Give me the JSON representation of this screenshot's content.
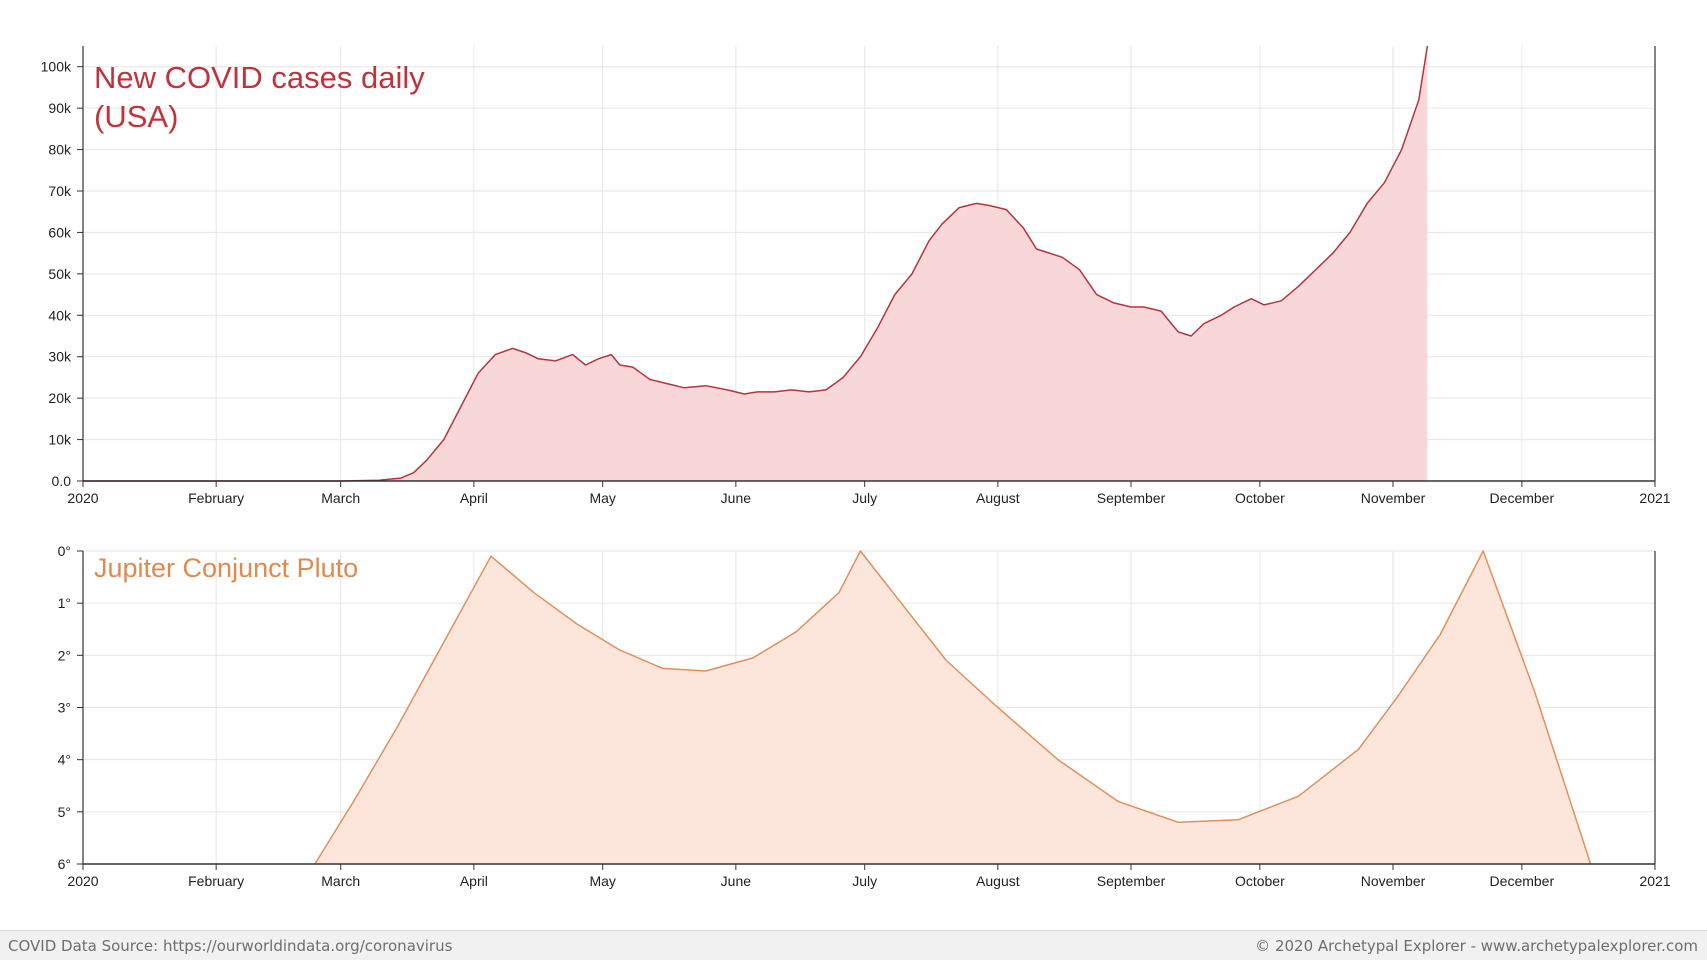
{
  "chart_data": [
    {
      "type": "area",
      "title": "New COVID cases daily\n(USA)",
      "title_color": "#c1333c",
      "line_color": "#b8343d",
      "fill_color": "#f8d7d9",
      "grid": true,
      "xlim": [
        "2020-01-01",
        "2021-01-01"
      ],
      "x_tick_labels": [
        "2020",
        "February",
        "March",
        "April",
        "May",
        "June",
        "July",
        "August",
        "September",
        "October",
        "November",
        "December",
        "2021"
      ],
      "ylim": [
        0,
        105000
      ],
      "y_ticks": [
        0,
        10000,
        20000,
        30000,
        40000,
        50000,
        60000,
        70000,
        80000,
        90000,
        100000
      ],
      "y_tick_labels": [
        "0.0",
        "10k",
        "20k",
        "30k",
        "40k",
        "50k",
        "60k",
        "70k",
        "80k",
        "90k",
        "100k"
      ],
      "series": [
        {
          "x": [
            "2020-01-01",
            "2020-02-01",
            "2020-03-01",
            "2020-03-10",
            "2020-03-15",
            "2020-03-18",
            "2020-03-21",
            "2020-03-25",
            "2020-03-29",
            "2020-04-02",
            "2020-04-06",
            "2020-04-10",
            "2020-04-13",
            "2020-04-16",
            "2020-04-20",
            "2020-04-24",
            "2020-04-27",
            "2020-04-30",
            "2020-05-03",
            "2020-05-05",
            "2020-05-08",
            "2020-05-10",
            "2020-05-12",
            "2020-05-16",
            "2020-05-20",
            "2020-05-25",
            "2020-05-30",
            "2020-06-03",
            "2020-06-06",
            "2020-06-10",
            "2020-06-14",
            "2020-06-18",
            "2020-06-22",
            "2020-06-26",
            "2020-06-30",
            "2020-07-04",
            "2020-07-08",
            "2020-07-12",
            "2020-07-16",
            "2020-07-19",
            "2020-07-23",
            "2020-07-27",
            "2020-07-30",
            "2020-08-03",
            "2020-08-07",
            "2020-08-10",
            "2020-08-13",
            "2020-08-16",
            "2020-08-20",
            "2020-08-24",
            "2020-08-28",
            "2020-09-01",
            "2020-09-04",
            "2020-09-08",
            "2020-09-12",
            "2020-09-15",
            "2020-09-18",
            "2020-09-22",
            "2020-09-25",
            "2020-09-29",
            "2020-10-02",
            "2020-10-06",
            "2020-10-10",
            "2020-10-14",
            "2020-10-18",
            "2020-10-22",
            "2020-10-26",
            "2020-10-30",
            "2020-11-03",
            "2020-11-07",
            "2020-11-09"
          ],
          "y": [
            0,
            0,
            0,
            200,
            700,
            2000,
            5000,
            10000,
            18000,
            26000,
            30500,
            32000,
            31000,
            29500,
            29000,
            30500,
            28000,
            29500,
            30500,
            28000,
            27500,
            26000,
            24500,
            23500,
            22500,
            23000,
            22000,
            21000,
            21500,
            21500,
            22000,
            21500,
            22000,
            25000,
            30000,
            37000,
            45000,
            50000,
            58000,
            62000,
            66000,
            67000,
            66500,
            65500,
            61000,
            56000,
            55000,
            54000,
            51000,
            45000,
            43000,
            42000,
            42000,
            41000,
            36000,
            35000,
            38000,
            40000,
            42000,
            44000,
            42500,
            43500,
            47000,
            51000,
            55000,
            60000,
            67000,
            72000,
            80000,
            92000,
            105000
          ]
        }
      ]
    },
    {
      "type": "area",
      "title": "Jupiter Conjunct Pluto",
      "title_color": "#e08a4f",
      "line_color": "#e2905a",
      "fill_color": "#fce6dc",
      "grid": true,
      "y_inverted": true,
      "xlim": [
        "2020-01-01",
        "2021-01-01"
      ],
      "x_tick_labels": [
        "2020",
        "February",
        "March",
        "April",
        "May",
        "June",
        "July",
        "August",
        "September",
        "October",
        "November",
        "December",
        "2021"
      ],
      "ylim": [
        0,
        6
      ],
      "y_ticks": [
        0,
        1,
        2,
        3,
        4,
        5,
        6
      ],
      "y_tick_labels": [
        "0°",
        "1°",
        "2°",
        "3°",
        "4°",
        "5°",
        "6°"
      ],
      "series": [
        {
          "x": [
            "2020-02-24",
            "2020-03-04",
            "2020-03-14",
            "2020-03-24",
            "2020-04-05",
            "2020-04-15",
            "2020-04-25",
            "2020-05-05",
            "2020-05-15",
            "2020-05-25",
            "2020-06-05",
            "2020-06-15",
            "2020-06-25",
            "2020-06-30",
            "2020-07-10",
            "2020-07-20",
            "2020-08-01",
            "2020-08-15",
            "2020-08-29",
            "2020-09-12",
            "2020-09-26",
            "2020-10-10",
            "2020-10-24",
            "2020-11-02",
            "2020-11-12",
            "2020-11-22",
            "2020-12-04",
            "2020-12-17"
          ],
          "y": [
            6.0,
            4.8,
            3.4,
            1.9,
            0.1,
            0.8,
            1.4,
            1.9,
            2.25,
            2.3,
            2.05,
            1.55,
            0.8,
            0.0,
            1.05,
            2.1,
            3.0,
            4.0,
            4.8,
            5.2,
            5.15,
            4.7,
            3.8,
            2.8,
            1.6,
            0.0,
            2.7,
            6.0
          ]
        }
      ]
    }
  ],
  "footer": {
    "source": "COVID Data Source: https://ourworldindata.org/coronavirus",
    "copyright": "© 2020 Archetypal Explorer - www.archetypalexplorer.com"
  }
}
